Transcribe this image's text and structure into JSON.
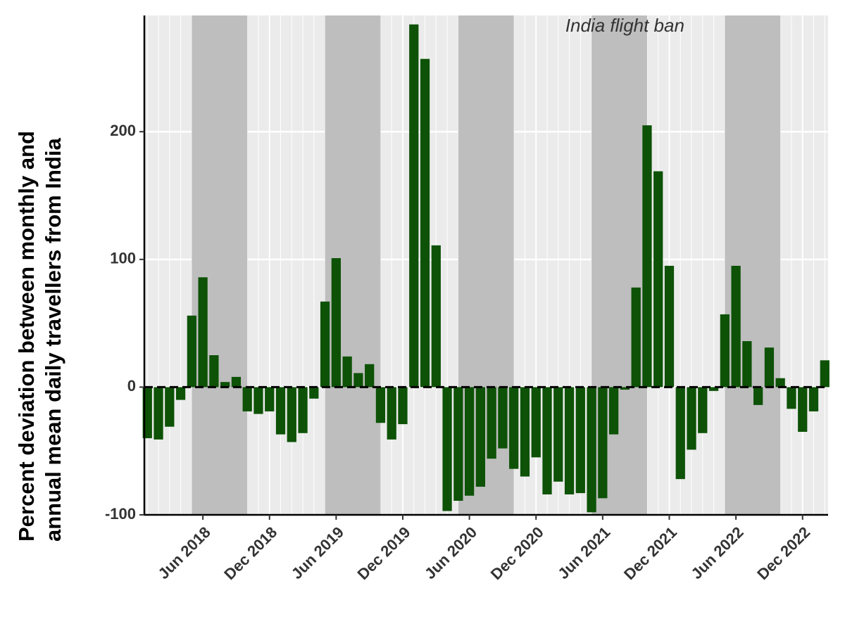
{
  "chart_data": {
    "type": "bar",
    "y_label_lines": [
      "Percent deviation between monthly and",
      "annual mean daily travellers from India"
    ],
    "annotations": [
      {
        "text": "India flight ban",
        "x": "2021-08",
        "y": 282
      }
    ],
    "x": [
      "2018-01",
      "2018-02",
      "2018-03",
      "2018-04",
      "2018-05",
      "2018-06",
      "2018-07",
      "2018-08",
      "2018-09",
      "2018-10",
      "2018-11",
      "2018-12",
      "2019-01",
      "2019-02",
      "2019-03",
      "2019-04",
      "2019-05",
      "2019-06",
      "2019-07",
      "2019-08",
      "2019-09",
      "2019-10",
      "2019-11",
      "2019-12",
      "2020-01",
      "2020-02",
      "2020-03",
      "2020-04",
      "2020-05",
      "2020-06",
      "2020-07",
      "2020-08",
      "2020-09",
      "2020-10",
      "2020-11",
      "2020-12",
      "2021-01",
      "2021-02",
      "2021-03",
      "2021-04",
      "2021-05",
      "2021-06",
      "2021-07",
      "2021-08",
      "2021-09",
      "2021-10",
      "2021-11",
      "2021-12",
      "2022-01",
      "2022-02",
      "2022-03",
      "2022-04",
      "2022-05",
      "2022-06",
      "2022-07",
      "2022-08",
      "2022-09",
      "2022-10",
      "2022-11",
      "2022-12",
      "2023-01",
      "2023-02"
    ],
    "values": [
      -40,
      -41,
      -31,
      -10,
      56,
      86,
      25,
      4,
      8,
      -19,
      -21,
      -19,
      -37,
      -43,
      -36,
      -9,
      67,
      101,
      24,
      11,
      18,
      -28,
      -41,
      -29,
      284,
      257,
      111,
      -97,
      -89,
      -85,
      -78,
      -56,
      -48,
      -64,
      -70,
      -55,
      -84,
      -74,
      -84,
      -83,
      -98,
      -87,
      -37,
      -2,
      78,
      205,
      169,
      95,
      -72,
      -49,
      -36,
      -3,
      57,
      95,
      36,
      -14,
      31,
      7,
      -17,
      -35,
      -19,
      21
    ],
    "color": "#0d5206",
    "shaded_periods": [
      {
        "start": "2018-05",
        "end": "2018-10"
      },
      {
        "start": "2019-05",
        "end": "2019-10"
      },
      {
        "start": "2020-05",
        "end": "2020-10"
      },
      {
        "start": "2021-05",
        "end": "2021-10"
      },
      {
        "start": "2022-05",
        "end": "2022-10"
      }
    ],
    "shade_color": "#bebebe",
    "hline": 0,
    "xlim": [
      "2018-01",
      "2023-02"
    ],
    "xticks": [
      {
        "value": "2018-06",
        "label": "Jun 2018"
      },
      {
        "value": "2018-12",
        "label": "Dec 2018"
      },
      {
        "value": "2019-06",
        "label": "Jun 2019"
      },
      {
        "value": "2019-12",
        "label": "Dec 2019"
      },
      {
        "value": "2020-06",
        "label": "Jun 2020"
      },
      {
        "value": "2020-12",
        "label": "Dec 2020"
      },
      {
        "value": "2021-06",
        "label": "Jun 2021"
      },
      {
        "value": "2021-12",
        "label": "Dec 2021"
      },
      {
        "value": "2022-06",
        "label": "Jun 2022"
      },
      {
        "value": "2022-12",
        "label": "Dec 2022"
      }
    ],
    "ylim": [
      -100,
      291
    ],
    "yticks": [
      -100,
      0,
      100,
      200
    ],
    "grid": true
  }
}
